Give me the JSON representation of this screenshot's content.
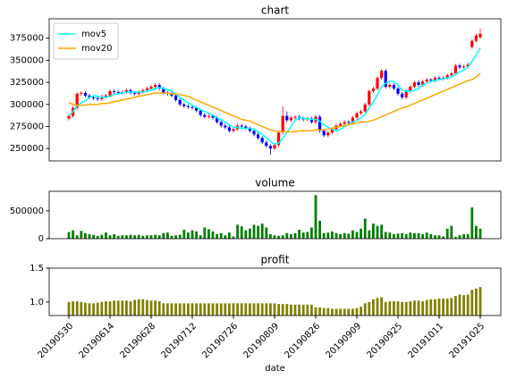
{
  "chart_data": [
    {
      "type": "candlestick",
      "title": "chart",
      "open": [
        284000,
        287000,
        296000,
        312000,
        313000,
        310000,
        308000,
        307000,
        306000,
        309000,
        310000,
        315000,
        314000,
        313000,
        314000,
        316000,
        313000,
        312000,
        314000,
        316000,
        318000,
        320000,
        322000,
        318000,
        313000,
        312000,
        310000,
        305000,
        300000,
        298000,
        297000,
        296000,
        293000,
        288000,
        286000,
        287000,
        285000,
        280000,
        276000,
        274000,
        270000,
        272000,
        276000,
        275000,
        273000,
        270000,
        266000,
        262000,
        257000,
        253000,
        250000,
        254000,
        268000,
        287000,
        282000,
        285000,
        286000,
        284000,
        283000,
        284000,
        280000,
        286000,
        270000,
        265000,
        268000,
        272000,
        276000,
        278000,
        280000,
        279000,
        285000,
        290000,
        292000,
        300000,
        315000,
        318000,
        330000,
        338000,
        320000,
        322000,
        318000,
        312000,
        308000,
        315000,
        320000,
        325000,
        322000,
        326000,
        328000,
        327000,
        330000,
        329000,
        330000,
        333000,
        335000,
        344000,
        342000,
        343000,
        365000,
        372000,
        376000
      ],
      "high": [
        289000,
        298000,
        314000,
        315000,
        315000,
        312000,
        310000,
        309000,
        311000,
        312000,
        317000,
        317000,
        316000,
        316000,
        318000,
        318000,
        315000,
        316000,
        318000,
        320000,
        322000,
        324000,
        324000,
        320000,
        315000,
        314000,
        312000,
        307000,
        302000,
        300000,
        299000,
        298000,
        295000,
        290000,
        289000,
        289000,
        287000,
        282000,
        278000,
        276000,
        274000,
        278000,
        278000,
        277000,
        275000,
        272000,
        268000,
        264000,
        259000,
        255000,
        256000,
        270000,
        298000,
        292000,
        287000,
        288000,
        288000,
        286000,
        286000,
        286000,
        288000,
        288000,
        272000,
        270000,
        274000,
        278000,
        280000,
        282000,
        282000,
        287000,
        292000,
        294000,
        302000,
        317000,
        320000,
        332000,
        340000,
        340000,
        324000,
        324000,
        320000,
        314000,
        317000,
        322000,
        327000,
        327000,
        328000,
        330000,
        330000,
        332000,
        332000,
        332000,
        335000,
        337000,
        346000,
        346000,
        345000,
        347000,
        374000,
        380000,
        386000
      ],
      "low": [
        282000,
        285000,
        294000,
        310000,
        308000,
        306000,
        305000,
        304000,
        304000,
        307000,
        308000,
        312000,
        311000,
        311000,
        312000,
        311000,
        310000,
        310000,
        312000,
        314000,
        316000,
        318000,
        316000,
        311000,
        310000,
        308000,
        303000,
        298000,
        296000,
        295000,
        294000,
        291000,
        286000,
        284000,
        284000,
        283000,
        278000,
        274000,
        272000,
        268000,
        268000,
        270000,
        273000,
        271000,
        268000,
        264000,
        260000,
        255000,
        251000,
        243000,
        248000,
        252000,
        266000,
        280000,
        280000,
        283000,
        282000,
        281000,
        281000,
        278000,
        278000,
        268000,
        263000,
        263000,
        266000,
        270000,
        274000,
        276000,
        277000,
        277000,
        283000,
        288000,
        290000,
        298000,
        313000,
        316000,
        328000,
        318000,
        318000,
        316000,
        310000,
        306000,
        306000,
        313000,
        318000,
        320000,
        320000,
        324000,
        325000,
        325000,
        327000,
        327000,
        328000,
        331000,
        333000,
        340000,
        340000,
        341000,
        363000,
        370000,
        374000
      ],
      "close": [
        287000,
        296000,
        312000,
        313000,
        310000,
        308000,
        307000,
        306000,
        309000,
        310000,
        315000,
        314000,
        313000,
        314000,
        316000,
        313000,
        312000,
        314000,
        316000,
        318000,
        320000,
        322000,
        318000,
        313000,
        312000,
        310000,
        305000,
        300000,
        298000,
        297000,
        296000,
        293000,
        288000,
        286000,
        287000,
        285000,
        280000,
        276000,
        274000,
        270000,
        272000,
        276000,
        275000,
        273000,
        270000,
        266000,
        262000,
        257000,
        253000,
        250000,
        254000,
        268000,
        287000,
        282000,
        285000,
        286000,
        284000,
        283000,
        284000,
        280000,
        286000,
        270000,
        265000,
        268000,
        272000,
        276000,
        278000,
        280000,
        279000,
        285000,
        290000,
        292000,
        300000,
        315000,
        318000,
        330000,
        338000,
        320000,
        322000,
        318000,
        312000,
        308000,
        315000,
        320000,
        325000,
        322000,
        326000,
        328000,
        327000,
        330000,
        329000,
        330000,
        333000,
        335000,
        344000,
        342000,
        343000,
        345000,
        372000,
        378000,
        380000
      ],
      "up_color": "red",
      "down_color": "blue",
      "series": [
        {
          "name": "mov5",
          "color": "cyan",
          "values": [
            287000,
            292000,
            298000,
            302000,
            304000,
            308000,
            310000,
            309000,
            308000,
            308000,
            309000,
            311000,
            312000,
            313000,
            314000,
            314000,
            314000,
            314000,
            314000,
            315000,
            316000,
            318000,
            319000,
            318000,
            317000,
            315000,
            312000,
            308000,
            305000,
            302000,
            299000,
            297000,
            294000,
            292000,
            290000,
            288000,
            285000,
            283000,
            280000,
            277000,
            274000,
            274000,
            273000,
            273000,
            273000,
            272000,
            269000,
            266000,
            262000,
            258000,
            255000,
            256000,
            262000,
            268000,
            275000,
            282000,
            285000,
            284000,
            284000,
            283000,
            283000,
            281000,
            277000,
            274000,
            272000,
            270000,
            272000,
            275000,
            277000,
            280000,
            282000,
            285000,
            289000,
            296000,
            303000,
            311000,
            320000,
            324000,
            326000,
            326000,
            322000,
            316000,
            315000,
            315000,
            316000,
            318000,
            322000,
            324000,
            326000,
            327000,
            328000,
            329000,
            330000,
            331000,
            334000,
            337000,
            339000,
            342000,
            349000,
            356000,
            364000
          ]
        },
        {
          "name": "mov20",
          "color": "orange",
          "values": [
            302000,
            300000,
            299000,
            299000,
            299000,
            300000,
            300000,
            300000,
            301000,
            301000,
            302000,
            303000,
            304000,
            305000,
            306000,
            307000,
            308000,
            309000,
            310000,
            311000,
            312000,
            313000,
            313000,
            313000,
            313000,
            312000,
            312000,
            311000,
            310000,
            309000,
            307000,
            305000,
            303000,
            301000,
            299000,
            297000,
            295000,
            293000,
            291000,
            289000,
            287000,
            285000,
            283000,
            282000,
            281000,
            279000,
            277000,
            275000,
            273000,
            271000,
            270000,
            269000,
            269000,
            269000,
            269000,
            269000,
            270000,
            270000,
            270000,
            270000,
            271000,
            271000,
            271000,
            272000,
            273000,
            274000,
            275000,
            276000,
            277000,
            278000,
            279000,
            280000,
            280000,
            281000,
            282000,
            284000,
            286000,
            288000,
            290000,
            292000,
            294000,
            296000,
            297000,
            299000,
            301000,
            303000,
            305000,
            307000,
            309000,
            311000,
            313000,
            315000,
            317000,
            319000,
            321000,
            323000,
            325000,
            327000,
            328000,
            331000,
            335000
          ]
        }
      ],
      "ylim": [
        236000,
        397000
      ],
      "yticks": [
        250000,
        275000,
        300000,
        325000,
        350000,
        375000
      ],
      "legend": "upper left"
    },
    {
      "type": "bar",
      "title": "volume",
      "color": "green",
      "values": [
        120000,
        150000,
        60000,
        140000,
        100000,
        80000,
        70000,
        50000,
        70000,
        110000,
        60000,
        80000,
        50000,
        60000,
        60000,
        70000,
        60000,
        70000,
        50000,
        60000,
        60000,
        70000,
        60000,
        100000,
        110000,
        50000,
        60000,
        70000,
        160000,
        110000,
        150000,
        130000,
        60000,
        200000,
        170000,
        130000,
        80000,
        100000,
        60000,
        110000,
        40000,
        250000,
        220000,
        150000,
        180000,
        250000,
        230000,
        270000,
        200000,
        80000,
        60000,
        50000,
        60000,
        100000,
        80000,
        100000,
        160000,
        110000,
        120000,
        200000,
        780000,
        320000,
        100000,
        110000,
        130000,
        100000,
        80000,
        100000,
        90000,
        150000,
        120000,
        180000,
        360000,
        150000,
        270000,
        230000,
        250000,
        120000,
        110000,
        80000,
        90000,
        100000,
        80000,
        110000,
        100000,
        100000,
        80000,
        110000,
        80000,
        60000,
        60000,
        40000,
        180000,
        230000,
        30000,
        60000,
        80000,
        80000,
        560000,
        230000,
        180000
      ],
      "ylim": [
        0,
        850000
      ],
      "yticks": [
        0,
        500000
      ]
    },
    {
      "type": "bar",
      "title": "profit",
      "color": "olive",
      "xlabel": "date",
      "values": [
        1.0,
        1.01,
        1.01,
        1.0,
        0.99,
        0.98,
        0.98,
        0.99,
        1.0,
        1.01,
        1.01,
        1.02,
        1.02,
        1.02,
        1.02,
        1.01,
        1.03,
        1.04,
        1.04,
        1.03,
        1.02,
        1.02,
        1.01,
        0.98,
        0.98,
        0.98,
        0.98,
        0.98,
        0.98,
        0.98,
        0.98,
        0.98,
        0.98,
        0.98,
        0.98,
        0.98,
        0.98,
        0.98,
        0.98,
        0.98,
        0.98,
        0.98,
        0.98,
        0.98,
        0.98,
        0.98,
        0.98,
        0.98,
        0.98,
        0.98,
        0.98,
        0.97,
        0.97,
        0.97,
        0.96,
        0.96,
        0.96,
        0.96,
        0.96,
        0.96,
        0.92,
        0.92,
        0.91,
        0.91,
        0.9,
        0.9,
        0.9,
        0.9,
        0.9,
        0.9,
        0.91,
        0.93,
        0.98,
        1.0,
        1.04,
        1.06,
        1.07,
        1.0,
        1.01,
        1.01,
        1.01,
        1.0,
        1.0,
        1.01,
        1.02,
        1.02,
        1.01,
        1.03,
        1.04,
        1.04,
        1.05,
        1.05,
        1.05,
        1.06,
        1.09,
        1.11,
        1.1,
        1.11,
        1.18,
        1.2,
        1.22
      ],
      "categories": [
        "20190530",
        null,
        null,
        null,
        null,
        null,
        null,
        null,
        null,
        null,
        "20190614",
        null,
        null,
        null,
        null,
        null,
        null,
        null,
        null,
        null,
        "20190628",
        null,
        null,
        null,
        null,
        null,
        null,
        null,
        null,
        null,
        "20190712",
        null,
        null,
        null,
        null,
        null,
        null,
        null,
        null,
        null,
        "20190726",
        null,
        null,
        null,
        null,
        null,
        null,
        null,
        null,
        null,
        "20190809",
        null,
        null,
        null,
        null,
        null,
        null,
        null,
        null,
        null,
        "20190826",
        null,
        null,
        null,
        null,
        null,
        null,
        null,
        null,
        null,
        "20190909",
        null,
        null,
        null,
        null,
        null,
        null,
        null,
        null,
        null,
        "20190925",
        null,
        null,
        null,
        null,
        null,
        null,
        null,
        null,
        null,
        "20191011",
        null,
        null,
        null,
        null,
        null,
        null,
        null,
        null,
        null,
        "20191025"
      ],
      "ylim": [
        0.8,
        1.5
      ],
      "yticks": [
        {
          "value": 1,
          "label": "1.0"
        },
        1.5
      ]
    }
  ]
}
